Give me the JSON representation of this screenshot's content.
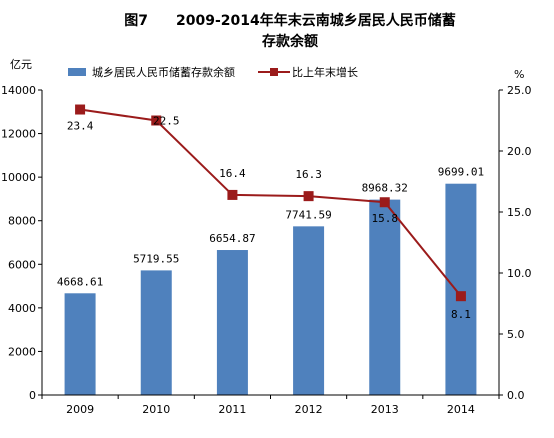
{
  "chart_data": {
    "type": "bar",
    "title_line1": "图7　　2009-2014年年末云南城乡居民人民币储蓄",
    "title_line2": "存款余额",
    "left_axis_unit": "亿元",
    "right_axis_unit": "%",
    "categories": [
      "2009",
      "2010",
      "2011",
      "2012",
      "2013",
      "2014"
    ],
    "ylim_left": [
      0,
      14000
    ],
    "yticks_left": [
      "0",
      "2000",
      "4000",
      "6000",
      "8000",
      "10000",
      "12000",
      "14000"
    ],
    "ylim_right": [
      0,
      25
    ],
    "yticks_right": [
      "0.0",
      "5.0",
      "10.0",
      "15.0",
      "20.0",
      "25.0"
    ],
    "grid": false,
    "legend_position": "top",
    "series": [
      {
        "name": "城乡居民人民币储蓄存款余额",
        "type": "bar",
        "axis": "left",
        "color": "#4F81BD",
        "values": [
          4668.61,
          5719.55,
          6654.87,
          7741.59,
          8968.32,
          9699.01
        ],
        "labels": [
          "4668.61",
          "5719.55",
          "6654.87",
          "7741.59",
          "8968.32",
          "9699.01"
        ]
      },
      {
        "name": "比上年末增长",
        "type": "line",
        "axis": "right",
        "color": "#9B1B1B",
        "values": [
          23.4,
          22.5,
          16.4,
          16.3,
          15.8,
          8.1
        ],
        "labels": [
          "23.4",
          "22.5",
          "16.4",
          "16.3",
          "15.8",
          "8.1"
        ]
      }
    ]
  }
}
